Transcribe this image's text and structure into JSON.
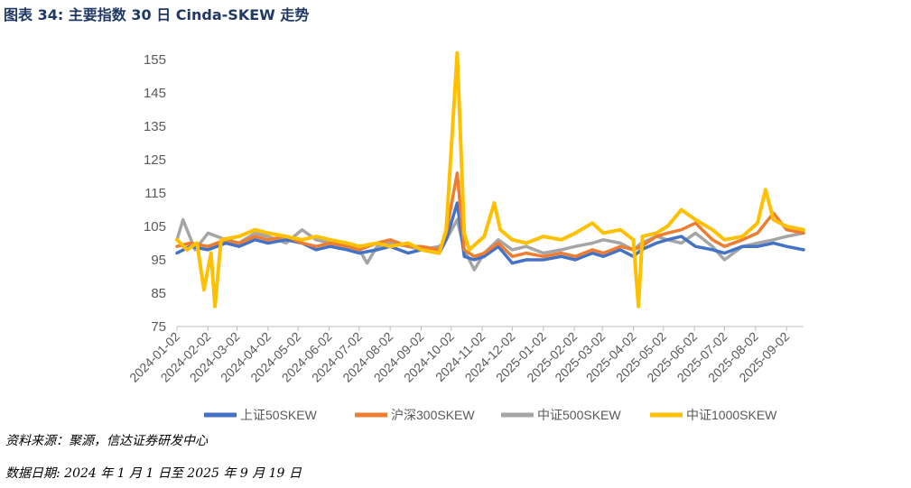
{
  "header": {
    "title": "图表 34:  主要指数 30 日 Cinda-SKEW 走势"
  },
  "footer": {
    "source": "资料来源：聚源，信达证券研发中心",
    "date_range": "数据日期:  2024 年 1 月 1 日至 2025 年 9 月 19 日"
  },
  "chart_data": {
    "type": "line",
    "title": "",
    "xlabel": "",
    "ylabel": "",
    "ylim": [
      75,
      155
    ],
    "yticks": [
      75,
      85,
      95,
      105,
      115,
      125,
      135,
      145,
      155
    ],
    "xlim": [
      "2024-01-02",
      "2025-09-19"
    ],
    "xticks": [
      "2024-01-02",
      "2024-02-02",
      "2024-03-02",
      "2024-04-02",
      "2024-05-02",
      "2024-06-02",
      "2024-07-02",
      "2024-08-02",
      "2024-09-02",
      "2024-10-02",
      "2024-11-02",
      "2024-12-02",
      "2025-01-02",
      "2025-02-02",
      "2025-03-02",
      "2025-04-02",
      "2025-05-02",
      "2025-06-02",
      "2025-07-02",
      "2025-08-02",
      "2025-09-02"
    ],
    "grid": false,
    "legend": "bottom",
    "series": [
      {
        "name": "上证50SKEW",
        "color": "#4472c4",
        "points": [
          [
            "2024-01-02",
            97
          ],
          [
            "2024-01-15",
            99
          ],
          [
            "2024-02-02",
            98
          ],
          [
            "2024-02-20",
            100
          ],
          [
            "2024-03-04",
            99
          ],
          [
            "2024-03-20",
            101
          ],
          [
            "2024-04-02",
            100
          ],
          [
            "2024-04-20",
            101
          ],
          [
            "2024-05-06",
            100
          ],
          [
            "2024-05-20",
            98
          ],
          [
            "2024-06-03",
            99
          ],
          [
            "2024-06-20",
            98
          ],
          [
            "2024-07-02",
            97
          ],
          [
            "2024-07-20",
            98
          ],
          [
            "2024-08-02",
            99
          ],
          [
            "2024-08-20",
            97
          ],
          [
            "2024-09-02",
            98
          ],
          [
            "2024-09-20",
            97
          ],
          [
            "2024-09-27",
            101
          ],
          [
            "2024-10-08",
            112
          ],
          [
            "2024-10-15",
            96
          ],
          [
            "2024-10-25",
            95
          ],
          [
            "2024-11-04",
            96
          ],
          [
            "2024-11-18",
            99
          ],
          [
            "2024-12-02",
            94
          ],
          [
            "2024-12-16",
            95
          ],
          [
            "2025-01-02",
            95
          ],
          [
            "2025-01-20",
            96
          ],
          [
            "2025-02-03",
            95
          ],
          [
            "2025-02-20",
            97
          ],
          [
            "2025-03-03",
            96
          ],
          [
            "2025-03-20",
            98
          ],
          [
            "2025-04-02",
            96
          ],
          [
            "2025-04-10",
            98
          ],
          [
            "2025-04-25",
            100
          ],
          [
            "2025-05-06",
            101
          ],
          [
            "2025-05-20",
            102
          ],
          [
            "2025-06-03",
            99
          ],
          [
            "2025-06-20",
            98
          ],
          [
            "2025-07-02",
            97
          ],
          [
            "2025-07-20",
            99
          ],
          [
            "2025-08-04",
            99
          ],
          [
            "2025-08-20",
            100
          ],
          [
            "2025-09-02",
            99
          ],
          [
            "2025-09-19",
            98
          ]
        ]
      },
      {
        "name": "沪深300SKEW",
        "color": "#ed7d31",
        "points": [
          [
            "2024-01-02",
            99
          ],
          [
            "2024-01-15",
            100
          ],
          [
            "2024-02-02",
            99
          ],
          [
            "2024-02-20",
            101
          ],
          [
            "2024-03-04",
            100
          ],
          [
            "2024-03-20",
            102
          ],
          [
            "2024-04-02",
            101
          ],
          [
            "2024-04-20",
            102
          ],
          [
            "2024-05-06",
            100
          ],
          [
            "2024-05-20",
            99
          ],
          [
            "2024-06-03",
            100
          ],
          [
            "2024-06-20",
            99
          ],
          [
            "2024-07-02",
            98
          ],
          [
            "2024-07-20",
            100
          ],
          [
            "2024-08-02",
            101
          ],
          [
            "2024-08-20",
            99
          ],
          [
            "2024-09-02",
            99
          ],
          [
            "2024-09-20",
            98
          ],
          [
            "2024-09-27",
            103
          ],
          [
            "2024-10-08",
            121
          ],
          [
            "2024-10-15",
            98
          ],
          [
            "2024-10-25",
            96
          ],
          [
            "2024-11-04",
            97
          ],
          [
            "2024-11-18",
            100
          ],
          [
            "2024-12-02",
            96
          ],
          [
            "2024-12-16",
            97
          ],
          [
            "2025-01-02",
            96
          ],
          [
            "2025-01-20",
            97
          ],
          [
            "2025-02-03",
            96
          ],
          [
            "2025-02-20",
            98
          ],
          [
            "2025-03-03",
            97
          ],
          [
            "2025-03-20",
            99
          ],
          [
            "2025-04-02",
            98
          ],
          [
            "2025-04-10",
            99
          ],
          [
            "2025-04-25",
            102
          ],
          [
            "2025-05-06",
            103
          ],
          [
            "2025-05-20",
            104
          ],
          [
            "2025-06-03",
            106
          ],
          [
            "2025-06-20",
            101
          ],
          [
            "2025-07-02",
            99
          ],
          [
            "2025-07-20",
            101
          ],
          [
            "2025-08-04",
            103
          ],
          [
            "2025-08-20",
            109
          ],
          [
            "2025-09-02",
            104
          ],
          [
            "2025-09-19",
            103
          ]
        ]
      },
      {
        "name": "中证500SKEW",
        "color": "#a5a5a5",
        "points": [
          [
            "2024-01-02",
            101
          ],
          [
            "2024-01-08",
            107
          ],
          [
            "2024-01-20",
            98
          ],
          [
            "2024-02-02",
            103
          ],
          [
            "2024-02-20",
            101
          ],
          [
            "2024-03-04",
            100
          ],
          [
            "2024-03-20",
            103
          ],
          [
            "2024-04-02",
            102
          ],
          [
            "2024-04-20",
            100
          ],
          [
            "2024-05-06",
            104
          ],
          [
            "2024-05-20",
            101
          ],
          [
            "2024-06-03",
            100
          ],
          [
            "2024-06-20",
            99
          ],
          [
            "2024-07-02",
            98
          ],
          [
            "2024-07-10",
            94
          ],
          [
            "2024-07-20",
            99
          ],
          [
            "2024-08-02",
            100
          ],
          [
            "2024-08-20",
            99
          ],
          [
            "2024-09-02",
            98
          ],
          [
            "2024-09-20",
            99
          ],
          [
            "2024-09-27",
            101
          ],
          [
            "2024-10-08",
            107
          ],
          [
            "2024-10-15",
            98
          ],
          [
            "2024-10-25",
            92
          ],
          [
            "2024-11-04",
            97
          ],
          [
            "2024-11-18",
            101
          ],
          [
            "2024-12-02",
            98
          ],
          [
            "2024-12-16",
            99
          ],
          [
            "2025-01-02",
            97
          ],
          [
            "2025-01-20",
            98
          ],
          [
            "2025-02-03",
            99
          ],
          [
            "2025-02-20",
            100
          ],
          [
            "2025-03-03",
            101
          ],
          [
            "2025-03-20",
            100
          ],
          [
            "2025-04-02",
            98
          ],
          [
            "2025-04-10",
            100
          ],
          [
            "2025-04-25",
            102
          ],
          [
            "2025-05-06",
            101
          ],
          [
            "2025-05-20",
            100
          ],
          [
            "2025-06-03",
            103
          ],
          [
            "2025-06-20",
            99
          ],
          [
            "2025-07-02",
            95
          ],
          [
            "2025-07-20",
            99
          ],
          [
            "2025-08-04",
            100
          ],
          [
            "2025-08-20",
            101
          ],
          [
            "2025-09-02",
            102
          ],
          [
            "2025-09-19",
            103
          ]
        ]
      },
      {
        "name": "中证1000SKEW",
        "color": "#ffc000",
        "points": [
          [
            "2024-01-02",
            101
          ],
          [
            "2024-01-12",
            98
          ],
          [
            "2024-01-22",
            100
          ],
          [
            "2024-01-29",
            86
          ],
          [
            "2024-02-05",
            97
          ],
          [
            "2024-02-09",
            81
          ],
          [
            "2024-02-15",
            101
          ],
          [
            "2024-03-04",
            102
          ],
          [
            "2024-03-20",
            104
          ],
          [
            "2024-04-02",
            103
          ],
          [
            "2024-04-20",
            102
          ],
          [
            "2024-05-06",
            101
          ],
          [
            "2024-05-20",
            102
          ],
          [
            "2024-06-03",
            101
          ],
          [
            "2024-06-20",
            100
          ],
          [
            "2024-07-02",
            99
          ],
          [
            "2024-07-20",
            100
          ],
          [
            "2024-08-02",
            99
          ],
          [
            "2024-08-20",
            100
          ],
          [
            "2024-09-02",
            98
          ],
          [
            "2024-09-20",
            97
          ],
          [
            "2024-09-27",
            104
          ],
          [
            "2024-10-08",
            157
          ],
          [
            "2024-10-15",
            103
          ],
          [
            "2024-10-20",
            98
          ],
          [
            "2024-11-04",
            102
          ],
          [
            "2024-11-14",
            112
          ],
          [
            "2024-11-20",
            104
          ],
          [
            "2024-12-02",
            101
          ],
          [
            "2024-12-16",
            100
          ],
          [
            "2025-01-02",
            102
          ],
          [
            "2025-01-20",
            101
          ],
          [
            "2025-02-03",
            103
          ],
          [
            "2025-02-20",
            106
          ],
          [
            "2025-03-03",
            103
          ],
          [
            "2025-03-20",
            104
          ],
          [
            "2025-04-02",
            101
          ],
          [
            "2025-04-07",
            81
          ],
          [
            "2025-04-11",
            102
          ],
          [
            "2025-04-25",
            103
          ],
          [
            "2025-05-06",
            105
          ],
          [
            "2025-05-20",
            110
          ],
          [
            "2025-06-03",
            107
          ],
          [
            "2025-06-20",
            104
          ],
          [
            "2025-07-02",
            101
          ],
          [
            "2025-07-20",
            102
          ],
          [
            "2025-08-04",
            106
          ],
          [
            "2025-08-12",
            116
          ],
          [
            "2025-08-20",
            107
          ],
          [
            "2025-09-02",
            105
          ],
          [
            "2025-09-19",
            104
          ]
        ]
      }
    ]
  }
}
